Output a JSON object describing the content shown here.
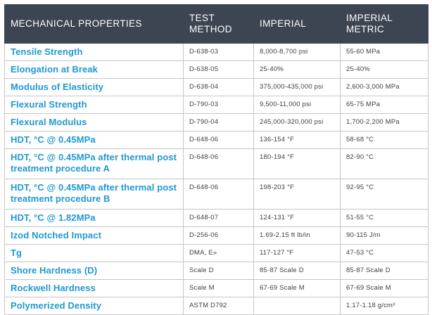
{
  "headers": {
    "property": "MECHANICAL PROPERTIES",
    "method": "TEST\nMETHOD",
    "imperial": "IMPERIAL",
    "metric": "IMPERIAL\nMETRIC"
  },
  "rows": [
    {
      "property": "Tensile Strength",
      "method": "D-638-03",
      "imperial": "8,000-8,700 psi",
      "metric": "55-60 MPa"
    },
    {
      "property": "Elongation at Break",
      "method": "D-638-05",
      "imperial": "25-40%",
      "metric": "25-40%"
    },
    {
      "property": "Modulus of Elasticity",
      "method": "D-638-04",
      "imperial": "375,000-435,000 psi",
      "metric": "2,600-3,000 MPa"
    },
    {
      "property": "Flexural Strength",
      "method": "D-790-03",
      "imperial": "9,500-11,000 psi",
      "metric": "65-75 MPa"
    },
    {
      "property": "Flexural Modulus",
      "method": "D-790-04",
      "imperial": "245,000-320,000 psi",
      "metric": "1,700-2,200 MPa"
    },
    {
      "property": "HDT, °C @ 0.45MPa",
      "method": "D-648-06",
      "imperial": "136-154 °F",
      "metric": "58-68 °C"
    },
    {
      "property": "HDT, °C @ 0.45MPa after thermal post treatment procedure A",
      "method": "D-648-06",
      "imperial": "180-194 °F",
      "metric": "82-90 °C"
    },
    {
      "property": "HDT, °C @ 0.45MPa after thermal post treatment procedure B",
      "method": "D-648-06",
      "imperial": "198-203 °F",
      "metric": "92-95 °C"
    },
    {
      "property": "HDT, °C @ 1.82MPa",
      "method": "D-648-07",
      "imperial": "124-131 °F",
      "metric": "51-55 °C"
    },
    {
      "property": "Izod Notched Impact",
      "method": "D-256-06",
      "imperial": "1.69-2.15 ft lb/in",
      "metric": "90-115 J/m"
    },
    {
      "property": "Tg",
      "method": "DMA, E»",
      "imperial": "117-127 °F",
      "metric": "47-53 °C"
    },
    {
      "property": "Shore Hardness (D)",
      "method": "Scale D",
      "imperial": "85-87 Scale D",
      "metric": "85-87 Scale D"
    },
    {
      "property": "Rockwell Hardness",
      "method": "Scale M",
      "imperial": "67-69 Scale M",
      "metric": "67-69 Scale M"
    },
    {
      "property": "Polymerized Density",
      "method": "ASTM D792",
      "imperial": "",
      "metric": "1.17-1.18 g/cm³"
    }
  ]
}
